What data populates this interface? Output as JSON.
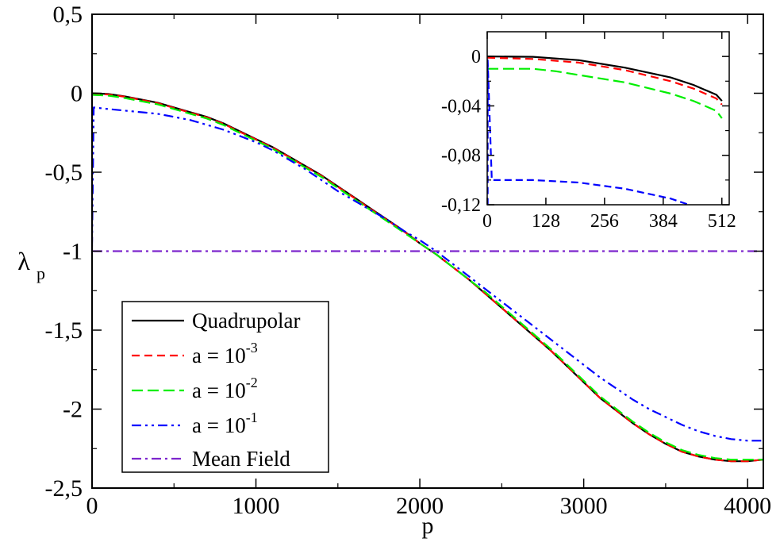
{
  "chart_data": [
    {
      "type": "line",
      "role": "main",
      "xlabel": "p",
      "ylabel": "λ",
      "ylabel_sub": "p",
      "xlim": [
        0,
        4096
      ],
      "ylim": [
        -2.5,
        0.5
      ],
      "xticks": [
        0,
        1000,
        2000,
        3000,
        4000
      ],
      "xtick_labels": [
        "0",
        "1000",
        "2000",
        "3000",
        "4000"
      ],
      "yticks": [
        0.5,
        0,
        -0.5,
        -1,
        -1.5,
        -2,
        -2.5
      ],
      "ytick_labels": [
        "0,5",
        "0",
        "-0,5",
        "-1",
        "-1,5",
        "-2",
        "-2,5"
      ],
      "legend_position": "bottom-left",
      "series": [
        {
          "name": "Quadrupolar",
          "legend_base": "Quadrupolar",
          "legend_exp": "",
          "color": "#000000",
          "dash": "",
          "width": 2.2,
          "x": [
            0,
            100,
            200,
            300,
            400,
            500,
            600,
            700,
            800,
            900,
            1000,
            1100,
            1200,
            1300,
            1400,
            1500,
            1600,
            1700,
            1800,
            1900,
            2000,
            2100,
            2200,
            2300,
            2400,
            2500,
            2600,
            2700,
            2800,
            2900,
            3000,
            3100,
            3200,
            3300,
            3400,
            3500,
            3600,
            3700,
            3800,
            3900,
            4000,
            4096
          ],
          "y": [
            0,
            -0.005,
            -0.02,
            -0.04,
            -0.06,
            -0.09,
            -0.12,
            -0.15,
            -0.19,
            -0.24,
            -0.29,
            -0.34,
            -0.4,
            -0.46,
            -0.52,
            -0.59,
            -0.66,
            -0.73,
            -0.8,
            -0.87,
            -0.95,
            -1.02,
            -1.1,
            -1.18,
            -1.27,
            -1.36,
            -1.45,
            -1.54,
            -1.63,
            -1.73,
            -1.83,
            -1.93,
            -2.01,
            -2.09,
            -2.16,
            -2.22,
            -2.27,
            -2.3,
            -2.32,
            -2.33,
            -2.33,
            -2.32
          ]
        },
        {
          "name": "a = 10^-3",
          "legend_base": "a = 10",
          "legend_exp": "-3",
          "color": "#ff0000",
          "dash": "10,6",
          "width": 2.2,
          "x": [
            0,
            100,
            200,
            300,
            400,
            500,
            600,
            700,
            800,
            900,
            1000,
            1100,
            1200,
            1300,
            1400,
            1500,
            1600,
            1700,
            1800,
            1900,
            2000,
            2100,
            2200,
            2300,
            2400,
            2500,
            2600,
            2700,
            2800,
            2900,
            3000,
            3100,
            3200,
            3300,
            3400,
            3500,
            3600,
            3700,
            3800,
            3900,
            4000,
            4096
          ],
          "y": [
            -0.002,
            -0.008,
            -0.022,
            -0.042,
            -0.063,
            -0.093,
            -0.123,
            -0.153,
            -0.193,
            -0.243,
            -0.293,
            -0.343,
            -0.403,
            -0.463,
            -0.523,
            -0.593,
            -0.663,
            -0.733,
            -0.803,
            -0.873,
            -0.95,
            -1.02,
            -1.1,
            -1.18,
            -1.27,
            -1.36,
            -1.45,
            -1.54,
            -1.63,
            -1.73,
            -1.83,
            -1.93,
            -2.01,
            -2.09,
            -2.16,
            -2.22,
            -2.27,
            -2.3,
            -2.32,
            -2.33,
            -2.33,
            -2.32
          ]
        },
        {
          "name": "a = 10^-2",
          "legend_base": "a = 10",
          "legend_exp": "-2",
          "color": "#00ee00",
          "dash": "14,6",
          "width": 2.2,
          "x": [
            0,
            100,
            200,
            300,
            400,
            500,
            600,
            700,
            800,
            900,
            1000,
            1100,
            1200,
            1300,
            1400,
            1500,
            1600,
            1700,
            1800,
            1900,
            2000,
            2100,
            2200,
            2300,
            2400,
            2500,
            2600,
            2700,
            2800,
            2900,
            3000,
            3100,
            3200,
            3300,
            3400,
            3500,
            3600,
            3700,
            3800,
            3900,
            4000,
            4096
          ],
          "y": [
            -0.01,
            -0.015,
            -0.03,
            -0.05,
            -0.07,
            -0.1,
            -0.13,
            -0.16,
            -0.2,
            -0.25,
            -0.3,
            -0.35,
            -0.41,
            -0.47,
            -0.53,
            -0.6,
            -0.67,
            -0.74,
            -0.81,
            -0.88,
            -0.95,
            -1.02,
            -1.1,
            -1.18,
            -1.26,
            -1.35,
            -1.44,
            -1.53,
            -1.62,
            -1.72,
            -1.82,
            -1.92,
            -2.0,
            -2.08,
            -2.15,
            -2.21,
            -2.26,
            -2.29,
            -2.31,
            -2.32,
            -2.32,
            -2.32
          ]
        },
        {
          "name": "a = 10^-1",
          "legend_base": "a = 10",
          "legend_exp": "-1",
          "color": "#0000ff",
          "dash": "12,5,3,5,3,5",
          "width": 2.2,
          "x": [
            0,
            10,
            100,
            200,
            300,
            400,
            500,
            600,
            700,
            800,
            900,
            1000,
            1100,
            1200,
            1300,
            1400,
            1500,
            1600,
            1700,
            1800,
            1900,
            2000,
            2100,
            2200,
            2300,
            2400,
            2500,
            2600,
            2700,
            2800,
            2900,
            3000,
            3100,
            3200,
            3300,
            3400,
            3500,
            3600,
            3700,
            3800,
            3900,
            4000,
            4096
          ],
          "y": [
            -0.97,
            -0.09,
            -0.1,
            -0.11,
            -0.12,
            -0.13,
            -0.15,
            -0.17,
            -0.2,
            -0.23,
            -0.27,
            -0.31,
            -0.36,
            -0.42,
            -0.48,
            -0.55,
            -0.62,
            -0.68,
            -0.74,
            -0.8,
            -0.87,
            -0.93,
            -1.0,
            -1.08,
            -1.16,
            -1.24,
            -1.32,
            -1.4,
            -1.48,
            -1.56,
            -1.64,
            -1.72,
            -1.8,
            -1.87,
            -1.94,
            -2.0,
            -2.05,
            -2.1,
            -2.14,
            -2.17,
            -2.19,
            -2.2,
            -2.2
          ]
        },
        {
          "name": "Mean Field",
          "legend_base": "Mean Field",
          "legend_exp": "",
          "color": "#7d26cd",
          "dash": "12,5,3,5",
          "width": 2.2,
          "x": [
            0,
            0,
            4096
          ],
          "y": [
            0,
            -1,
            -1
          ]
        }
      ]
    },
    {
      "type": "line",
      "role": "inset",
      "xlim": [
        0,
        528
      ],
      "ylim": [
        -0.12,
        0.02
      ],
      "xticks": [
        0,
        128,
        256,
        384,
        512
      ],
      "xtick_labels": [
        "0",
        "128",
        "256",
        "384",
        "512"
      ],
      "yticks": [
        0,
        -0.04,
        -0.08,
        -0.12
      ],
      "ytick_labels": [
        "0",
        "-0,04",
        "-0,08",
        "-0,12"
      ],
      "series": [
        {
          "name": "Quadrupolar",
          "color": "#000000",
          "dash": "",
          "width": 2.2,
          "x": [
            0,
            100,
            200,
            300,
            400,
            450,
            500,
            512
          ],
          "y": [
            0,
            -0.0003,
            -0.003,
            -0.009,
            -0.017,
            -0.023,
            -0.031,
            -0.036
          ]
        },
        {
          "name": "a = 10^-3",
          "color": "#ff0000",
          "dash": "10,6",
          "width": 2.2,
          "x": [
            0,
            100,
            200,
            300,
            400,
            450,
            500,
            512
          ],
          "y": [
            -0.001,
            -0.002,
            -0.005,
            -0.011,
            -0.02,
            -0.026,
            -0.034,
            -0.039
          ]
        },
        {
          "name": "a = 10^-2",
          "color": "#00ee00",
          "dash": "14,6",
          "width": 2.2,
          "x": [
            0,
            100,
            150,
            200,
            300,
            400,
            450,
            500,
            512
          ],
          "y": [
            -0.01,
            -0.01,
            -0.012,
            -0.015,
            -0.021,
            -0.03,
            -0.036,
            -0.044,
            -0.05
          ]
        },
        {
          "name": "a = 10^-1",
          "color": "#0000ff",
          "dash": "9,5",
          "width": 2.2,
          "x": [
            0,
            1,
            1,
            10,
            100,
            200,
            300,
            350,
            400,
            440
          ],
          "y": [
            -0.12,
            -0.12,
            -0.003,
            -0.1,
            -0.1,
            -0.102,
            -0.107,
            -0.111,
            -0.115,
            -0.12
          ]
        }
      ]
    }
  ]
}
